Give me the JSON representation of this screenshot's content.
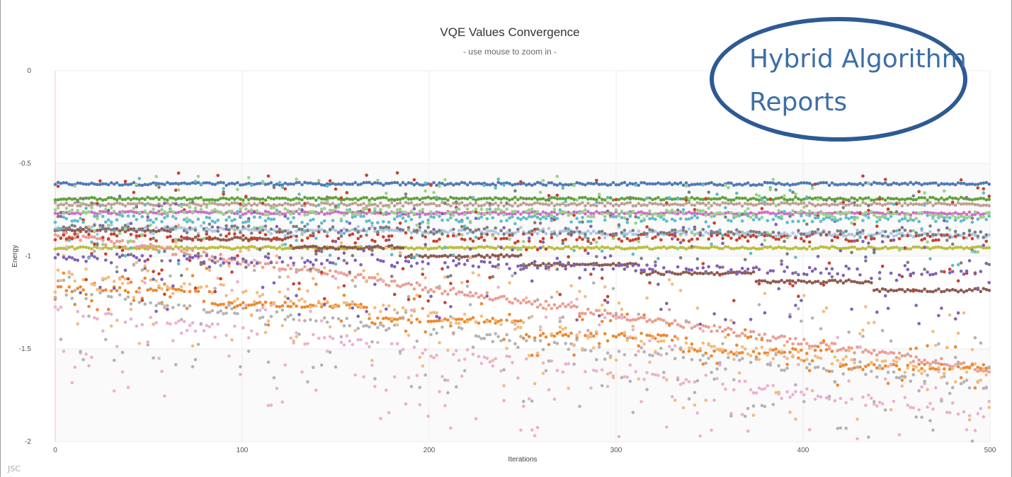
{
  "chart_data": {
    "type": "scatter",
    "title": "VQE Values Convergence",
    "subtitle": "- use mouse to zoom in -",
    "xlabel": "Iterations",
    "ylabel": "Energy",
    "xlim": [
      0,
      500
    ],
    "ylim": [
      -2,
      0
    ],
    "xticks": [
      0,
      100,
      200,
      300,
      400,
      500
    ],
    "yticks": [
      0,
      -0.5,
      -1,
      -1.5,
      -2
    ],
    "xtick_labels": [
      "0",
      "100",
      "200",
      "300",
      "400",
      "500"
    ],
    "ytick_labels": [
      "0",
      "-0.5",
      "-1",
      "-1.5",
      "-2"
    ],
    "grid": true,
    "series": [
      {
        "name": "series-blue",
        "color": "#4f79b5",
        "start": -0.61,
        "end": -0.61,
        "spread": 0.008,
        "scatter": 0.005,
        "steps": 0
      },
      {
        "name": "series-green",
        "color": "#5ea33c",
        "start": -0.69,
        "end": -0.69,
        "spread": 0.008,
        "scatter": 0.005,
        "steps": 0
      },
      {
        "name": "series-tan",
        "color": "#bfa094",
        "start": -0.72,
        "end": -0.72,
        "spread": 0.009,
        "scatter": 0.01,
        "steps": 0
      },
      {
        "name": "series-magenta",
        "color": "#cc6fc7",
        "start": -0.765,
        "end": -0.77,
        "spread": 0.008,
        "scatter": 0.005,
        "steps": 0
      },
      {
        "name": "series-lightblue",
        "color": "#adc6e7",
        "start": -0.85,
        "end": -0.89,
        "spread": 0.01,
        "scatter": 0.03,
        "steps": 0
      },
      {
        "name": "series-olive",
        "color": "#bcbd3e",
        "start": -0.955,
        "end": -0.955,
        "spread": 0.007,
        "scatter": 0.005,
        "steps": 0
      },
      {
        "name": "series-brown",
        "color": "#8d5a4f",
        "start": -0.86,
        "end": -1.23,
        "spread": 0.008,
        "scatter": 0.01,
        "steps": 8
      },
      {
        "name": "series-salmon",
        "color": "#eb9d91",
        "start": -0.88,
        "end": -1.61,
        "spread": 0.02,
        "scatter": 0.02,
        "steps": 0
      },
      {
        "name": "series-orange",
        "color": "#ed8930",
        "start": -1.18,
        "end": -1.68,
        "spread": 0.015,
        "scatter": 0.12,
        "steps": 6
      },
      {
        "name": "series-pink",
        "color": "#ecb0cf",
        "start": -1.3,
        "end": -1.85,
        "spread": 0.03,
        "scatter": 0.4,
        "steps": 0
      },
      {
        "name": "series-gray",
        "color": "#b3b3b3",
        "start": -1.2,
        "end": -1.7,
        "spread": 0.03,
        "scatter": 0.35,
        "steps": 0
      },
      {
        "name": "series-lightorange",
        "color": "#f2bc7f",
        "start": -1.1,
        "end": -1.65,
        "spread": 0.03,
        "scatter": 0.35,
        "steps": 0
      },
      {
        "name": "series-red",
        "color": "#c9412d",
        "start": -0.9,
        "end": -0.9,
        "spread": 0.02,
        "scatter": 0.35,
        "steps": 0
      },
      {
        "name": "series-purple",
        "color": "#8160b8",
        "start": -1.0,
        "end": -1.1,
        "spread": 0.02,
        "scatter": 0.3,
        "steps": 0
      },
      {
        "name": "series-teal",
        "color": "#5fbcc9",
        "start": -0.8,
        "end": -0.8,
        "spread": 0.02,
        "scatter": 0.25,
        "steps": 0
      },
      {
        "name": "series-lightgreen",
        "color": "#9ad387",
        "start": -0.75,
        "end": -0.78,
        "spread": 0.02,
        "scatter": 0.2,
        "steps": 0
      },
      {
        "name": "series-darkgray",
        "color": "#7f7f7f",
        "start": -0.85,
        "end": -0.88,
        "spread": 0.02,
        "scatter": 0.25,
        "steps": 0
      }
    ]
  },
  "callout": {
    "line1": "Hybrid Algorithm",
    "line2": "Reports"
  },
  "credit": "JSC"
}
